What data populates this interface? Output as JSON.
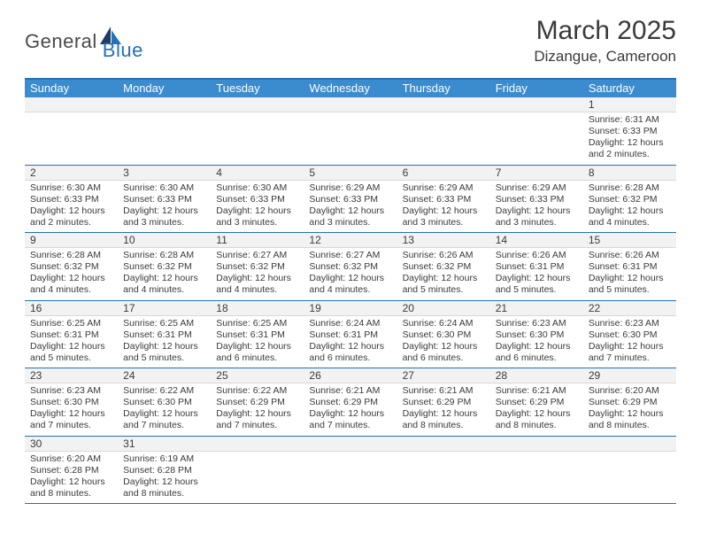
{
  "logo": {
    "part1": "General",
    "part2": "Blue"
  },
  "title": "March 2025",
  "location": "Dizangue, Cameroon",
  "colors": {
    "header_band": "#3b8bcf",
    "rule": "#2571b8",
    "daynum_bg": "#f2f2f2",
    "text": "#3a3a3a"
  },
  "dow": [
    "Sunday",
    "Monday",
    "Tuesday",
    "Wednesday",
    "Thursday",
    "Friday",
    "Saturday"
  ],
  "weeks": [
    [
      null,
      null,
      null,
      null,
      null,
      null,
      {
        "n": "1",
        "r": "Sunrise: 6:31 AM",
        "s": "Sunset: 6:33 PM",
        "d": "Daylight: 12 hours and 2 minutes."
      }
    ],
    [
      {
        "n": "2",
        "r": "Sunrise: 6:30 AM",
        "s": "Sunset: 6:33 PM",
        "d": "Daylight: 12 hours and 2 minutes."
      },
      {
        "n": "3",
        "r": "Sunrise: 6:30 AM",
        "s": "Sunset: 6:33 PM",
        "d": "Daylight: 12 hours and 3 minutes."
      },
      {
        "n": "4",
        "r": "Sunrise: 6:30 AM",
        "s": "Sunset: 6:33 PM",
        "d": "Daylight: 12 hours and 3 minutes."
      },
      {
        "n": "5",
        "r": "Sunrise: 6:29 AM",
        "s": "Sunset: 6:33 PM",
        "d": "Daylight: 12 hours and 3 minutes."
      },
      {
        "n": "6",
        "r": "Sunrise: 6:29 AM",
        "s": "Sunset: 6:33 PM",
        "d": "Daylight: 12 hours and 3 minutes."
      },
      {
        "n": "7",
        "r": "Sunrise: 6:29 AM",
        "s": "Sunset: 6:33 PM",
        "d": "Daylight: 12 hours and 3 minutes."
      },
      {
        "n": "8",
        "r": "Sunrise: 6:28 AM",
        "s": "Sunset: 6:32 PM",
        "d": "Daylight: 12 hours and 4 minutes."
      }
    ],
    [
      {
        "n": "9",
        "r": "Sunrise: 6:28 AM",
        "s": "Sunset: 6:32 PM",
        "d": "Daylight: 12 hours and 4 minutes."
      },
      {
        "n": "10",
        "r": "Sunrise: 6:28 AM",
        "s": "Sunset: 6:32 PM",
        "d": "Daylight: 12 hours and 4 minutes."
      },
      {
        "n": "11",
        "r": "Sunrise: 6:27 AM",
        "s": "Sunset: 6:32 PM",
        "d": "Daylight: 12 hours and 4 minutes."
      },
      {
        "n": "12",
        "r": "Sunrise: 6:27 AM",
        "s": "Sunset: 6:32 PM",
        "d": "Daylight: 12 hours and 4 minutes."
      },
      {
        "n": "13",
        "r": "Sunrise: 6:26 AM",
        "s": "Sunset: 6:32 PM",
        "d": "Daylight: 12 hours and 5 minutes."
      },
      {
        "n": "14",
        "r": "Sunrise: 6:26 AM",
        "s": "Sunset: 6:31 PM",
        "d": "Daylight: 12 hours and 5 minutes."
      },
      {
        "n": "15",
        "r": "Sunrise: 6:26 AM",
        "s": "Sunset: 6:31 PM",
        "d": "Daylight: 12 hours and 5 minutes."
      }
    ],
    [
      {
        "n": "16",
        "r": "Sunrise: 6:25 AM",
        "s": "Sunset: 6:31 PM",
        "d": "Daylight: 12 hours and 5 minutes."
      },
      {
        "n": "17",
        "r": "Sunrise: 6:25 AM",
        "s": "Sunset: 6:31 PM",
        "d": "Daylight: 12 hours and 5 minutes."
      },
      {
        "n": "18",
        "r": "Sunrise: 6:25 AM",
        "s": "Sunset: 6:31 PM",
        "d": "Daylight: 12 hours and 6 minutes."
      },
      {
        "n": "19",
        "r": "Sunrise: 6:24 AM",
        "s": "Sunset: 6:31 PM",
        "d": "Daylight: 12 hours and 6 minutes."
      },
      {
        "n": "20",
        "r": "Sunrise: 6:24 AM",
        "s": "Sunset: 6:30 PM",
        "d": "Daylight: 12 hours and 6 minutes."
      },
      {
        "n": "21",
        "r": "Sunrise: 6:23 AM",
        "s": "Sunset: 6:30 PM",
        "d": "Daylight: 12 hours and 6 minutes."
      },
      {
        "n": "22",
        "r": "Sunrise: 6:23 AM",
        "s": "Sunset: 6:30 PM",
        "d": "Daylight: 12 hours and 7 minutes."
      }
    ],
    [
      {
        "n": "23",
        "r": "Sunrise: 6:23 AM",
        "s": "Sunset: 6:30 PM",
        "d": "Daylight: 12 hours and 7 minutes."
      },
      {
        "n": "24",
        "r": "Sunrise: 6:22 AM",
        "s": "Sunset: 6:30 PM",
        "d": "Daylight: 12 hours and 7 minutes."
      },
      {
        "n": "25",
        "r": "Sunrise: 6:22 AM",
        "s": "Sunset: 6:29 PM",
        "d": "Daylight: 12 hours and 7 minutes."
      },
      {
        "n": "26",
        "r": "Sunrise: 6:21 AM",
        "s": "Sunset: 6:29 PM",
        "d": "Daylight: 12 hours and 7 minutes."
      },
      {
        "n": "27",
        "r": "Sunrise: 6:21 AM",
        "s": "Sunset: 6:29 PM",
        "d": "Daylight: 12 hours and 8 minutes."
      },
      {
        "n": "28",
        "r": "Sunrise: 6:21 AM",
        "s": "Sunset: 6:29 PM",
        "d": "Daylight: 12 hours and 8 minutes."
      },
      {
        "n": "29",
        "r": "Sunrise: 6:20 AM",
        "s": "Sunset: 6:29 PM",
        "d": "Daylight: 12 hours and 8 minutes."
      }
    ],
    [
      {
        "n": "30",
        "r": "Sunrise: 6:20 AM",
        "s": "Sunset: 6:28 PM",
        "d": "Daylight: 12 hours and 8 minutes."
      },
      {
        "n": "31",
        "r": "Sunrise: 6:19 AM",
        "s": "Sunset: 6:28 PM",
        "d": "Daylight: 12 hours and 8 minutes."
      },
      null,
      null,
      null,
      null,
      null
    ]
  ]
}
